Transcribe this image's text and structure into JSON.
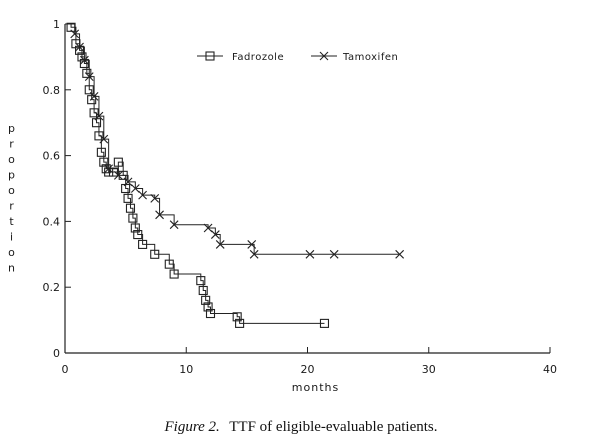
{
  "chart_data": {
    "type": "line",
    "subtype": "kaplan-meier step",
    "xlabel": "months",
    "ylabel": "proportion",
    "xlim": [
      0,
      40
    ],
    "ylim": [
      0,
      1
    ],
    "x_ticks": [
      0,
      10,
      20,
      30,
      40
    ],
    "y_ticks": [
      0,
      0.2,
      0.4,
      0.6,
      0.8,
      1
    ],
    "y_tick_labels": [
      "0",
      "0.2",
      "0.4",
      "0.6",
      "0.8",
      "1"
    ],
    "grid": false,
    "legend_position": "top-right",
    "caption": {
      "label": "Figure 2.",
      "text": "TTF of eligible-evaluable patients."
    },
    "series": [
      {
        "name": "Fadrozole",
        "marker": "square",
        "color": "#222222",
        "x": [
          0,
          0.5,
          0.9,
          1.2,
          1.4,
          1.6,
          1.8,
          2.0,
          2.2,
          2.4,
          2.6,
          2.8,
          3.0,
          3.2,
          3.4,
          3.6,
          4.0,
          4.4,
          4.8,
          5.0,
          5.2,
          5.4,
          5.6,
          5.8,
          6.0,
          6.4,
          7.4,
          8.6,
          9.0,
          11.2,
          11.4,
          11.6,
          11.8,
          12.0,
          14.2,
          14.4,
          21.4
        ],
        "y": [
          1.0,
          0.99,
          0.94,
          0.92,
          0.9,
          0.88,
          0.85,
          0.8,
          0.77,
          0.73,
          0.7,
          0.66,
          0.61,
          0.58,
          0.56,
          0.55,
          0.55,
          0.58,
          0.54,
          0.5,
          0.47,
          0.44,
          0.41,
          0.38,
          0.36,
          0.33,
          0.3,
          0.27,
          0.24,
          0.22,
          0.19,
          0.16,
          0.14,
          0.12,
          0.11,
          0.09,
          0.09
        ]
      },
      {
        "name": "Tamoxifen",
        "marker": "x",
        "color": "#222222",
        "x": [
          0,
          0.8,
          1.2,
          1.6,
          2.0,
          2.4,
          2.8,
          3.2,
          3.6,
          4.4,
          5.2,
          5.8,
          6.4,
          7.4,
          7.8,
          9.0,
          11.8,
          12.4,
          12.8,
          15.4,
          15.6,
          20.2,
          22.2,
          27.6
        ],
        "y": [
          1.0,
          0.97,
          0.93,
          0.89,
          0.84,
          0.78,
          0.72,
          0.65,
          0.56,
          0.54,
          0.52,
          0.5,
          0.48,
          0.47,
          0.42,
          0.39,
          0.38,
          0.36,
          0.33,
          0.33,
          0.3,
          0.3,
          0.3,
          0.3
        ]
      }
    ]
  }
}
